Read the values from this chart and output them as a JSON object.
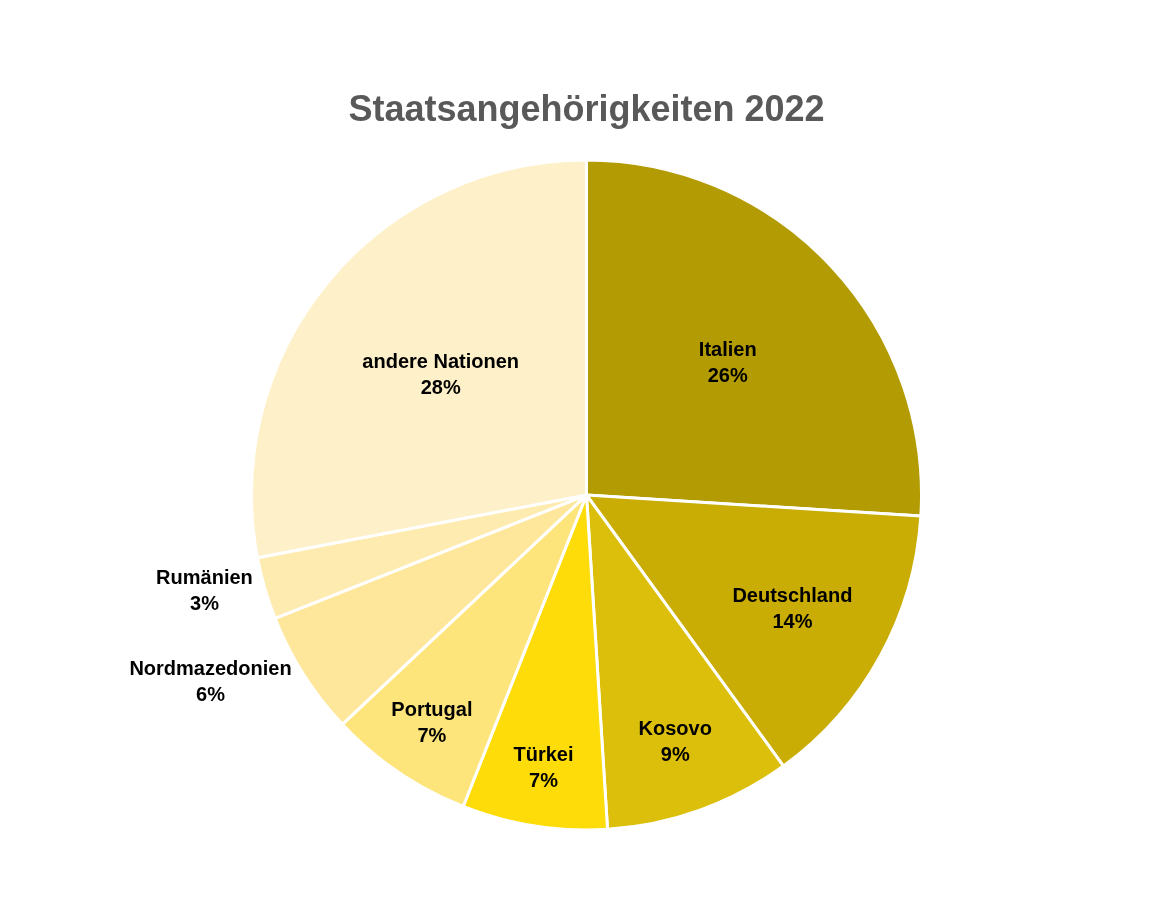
{
  "chart_data": {
    "type": "pie",
    "title": "Staatsangehörigkeiten 2022",
    "categories": [
      "Italien",
      "Deutschland",
      "Kosovo",
      "Türkei",
      "Portugal",
      "Nordmazedonien",
      "Rumänien",
      "andere Nationen"
    ],
    "values": [
      26,
      14,
      9,
      7,
      7,
      6,
      3,
      28
    ],
    "value_labels": [
      "26%",
      "14%",
      "9%",
      "7%",
      "7%",
      "6%",
      "3%",
      "28%"
    ],
    "colors": [
      "#b39b03",
      "#c9ad05",
      "#dcbf0a",
      "#fddc0a",
      "#fde57c",
      "#fee79a",
      "#feebb0",
      "#fef0c8"
    ],
    "legend": false
  }
}
